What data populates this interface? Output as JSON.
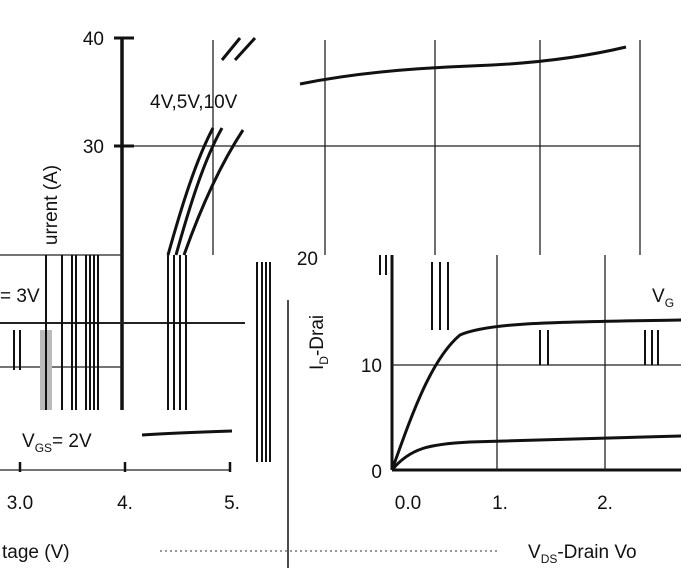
{
  "colors": {
    "background": "#ffffff",
    "ink": "#111111",
    "grid": "#222222",
    "artifact": "#777777"
  },
  "chart_data": [
    {
      "type": "line",
      "title": "",
      "ylabel": "urrent (A)",
      "y_ticks": [
        "40",
        "30"
      ],
      "ylim": [
        20,
        40
      ],
      "vgs_labels": [
        "4V,5V,10V"
      ],
      "series": [
        {
          "name": "4V,5V,10V",
          "points": [
            [
              1,
              41
            ],
            [
              1.5,
              42
            ],
            [
              2,
              44
            ]
          ]
        },
        {
          "points": [
            [
              0,
              20
            ],
            [
              0.8,
              28
            ],
            [
              2,
              41
            ]
          ]
        },
        {
          "points": [
            [
              0.4,
              20
            ],
            [
              1.2,
              29
            ],
            [
              2.2,
              41
            ]
          ]
        },
        {
          "points": [
            [
              1,
              20
            ],
            [
              2.2,
              29
            ],
            [
              3.4,
              33.5
            ]
          ]
        },
        {
          "points": [
            [
              1.5,
              35.8
            ],
            [
              3,
              36.7
            ],
            [
              4,
              37.2
            ],
            [
              5,
              37.7
            ],
            [
              6,
              39
            ]
          ]
        }
      ]
    },
    {
      "type": "line",
      "title": "",
      "ylabel": "I D-Drain",
      "y_ticks": [
        "20",
        "10",
        "0"
      ],
      "x_ticks": [
        "0.0",
        "1.",
        "2."
      ],
      "xlabel": "V DS-Drain Vo",
      "ylim": [
        0,
        20
      ],
      "series": [
        {
          "points": [
            [
              0,
              0
            ],
            [
              0.2,
              6
            ],
            [
              0.4,
              11
            ],
            [
              0.6,
              12.8
            ],
            [
              0.8,
              13.3
            ],
            [
              1.2,
              13.5
            ],
            [
              1.8,
              13.7
            ],
            [
              2.5,
              13.8
            ]
          ]
        },
        {
          "points": [
            [
              0,
              0
            ],
            [
              0.3,
              2.4
            ],
            [
              0.6,
              2.9
            ],
            [
              1,
              3.1
            ],
            [
              1.5,
              3.2
            ],
            [
              2,
              3.35
            ],
            [
              2.5,
              3.4
            ]
          ]
        }
      ]
    },
    {
      "type": "line",
      "title": "",
      "x_ticks": [
        "3.0",
        "4.",
        "5."
      ],
      "xlabel": "tage (V)",
      "vgs_labels": [
        "= 3V",
        "V GS = 2V"
      ],
      "series": [
        {
          "points": [
            [
              3.0,
              0.6
            ],
            [
              5.0,
              0.6
            ]
          ]
        },
        {
          "points": [
            [
              4.5,
              0.15
            ],
            [
              5.0,
              0.1
            ]
          ]
        }
      ]
    }
  ],
  "labels": {
    "vgs3_label": "= 3V",
    "vgs2_v": "V",
    "vgs2_sub": "GS",
    "vgs2_rest": "= 2V",
    "right_clip": "V",
    "right_clip_sub": "G",
    "id_main": "I",
    "id_sub": "D",
    "id_rest": "-Drai",
    "xlabel_left": "tage (V)",
    "xlabel_right_v": "V",
    "xlabel_right_sub": "DS",
    "xlabel_right_rest": "-Drain Vo"
  }
}
